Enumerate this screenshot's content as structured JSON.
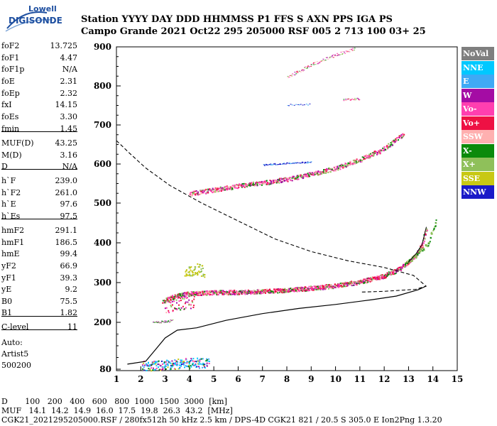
{
  "logo": {
    "line1": "Lowell",
    "line2": "DIGISONDE"
  },
  "header": {
    "row1": "Station           YYYY DAY    DDD HHMMSS P1  FFS S AXN PPS IGA PS",
    "row2": "Campo Grande  2021 Oct22 295 205000 RSF 005 2 713 100 03+ 25"
  },
  "params": [
    {
      "name": "foF2",
      "value": "13.725"
    },
    {
      "name": "foF1",
      "value": "4.47"
    },
    {
      "name": "foF1p",
      "value": "N/A"
    },
    {
      "name": "foE",
      "value": "2.31"
    },
    {
      "name": "foEp",
      "value": "2.32"
    },
    {
      "name": "fxI",
      "value": "14.15"
    },
    {
      "name": "foEs",
      "value": "3.30"
    },
    {
      "name": "fmin",
      "value": "1.45"
    },
    {
      "name": "MUF(D)",
      "value": "43.25"
    },
    {
      "name": "M(D)",
      "value": "3.16"
    },
    {
      "name": "D",
      "value": "N/A"
    },
    {
      "name": "h`F",
      "value": "239.0"
    },
    {
      "name": "h`F2",
      "value": "261.0"
    },
    {
      "name": "h`E",
      "value": "97.6"
    },
    {
      "name": "h`Es",
      "value": "97.5"
    },
    {
      "name": "hmF2",
      "value": "291.1"
    },
    {
      "name": "hmF1",
      "value": "186.5"
    },
    {
      "name": "hmE",
      "value": "99.4"
    },
    {
      "name": "yF2",
      "value": "66.9"
    },
    {
      "name": "yF1",
      "value": "39.3"
    },
    {
      "name": "yE",
      "value": "9.2"
    },
    {
      "name": "B0",
      "value": "75.5"
    },
    {
      "name": "B1",
      "value": "1.82"
    },
    {
      "name": "C-level",
      "value": "11"
    },
    {
      "name": "Auto:",
      "value": ""
    },
    {
      "name": "Artist5",
      "value": ""
    },
    {
      "name": "500200",
      "value": ""
    }
  ],
  "legend": [
    {
      "label": "NoVal",
      "color": "#7f7f7f"
    },
    {
      "label": "NNE",
      "color": "#00c8ff"
    },
    {
      "label": "E",
      "color": "#3fa9f5"
    },
    {
      "label": "W",
      "color": "#a40ca4"
    },
    {
      "label": "Vo-",
      "color": "#ff3fb0"
    },
    {
      "label": "Vo+",
      "color": "#ee1144"
    },
    {
      "label": "SSW",
      "color": "#ffb0b0"
    },
    {
      "label": "X-",
      "color": "#0b8a0b"
    },
    {
      "label": "X+",
      "color": "#8fc05a"
    },
    {
      "label": "SSE",
      "color": "#c8c814"
    },
    {
      "label": "NNW",
      "color": "#1a1ac8"
    }
  ],
  "footer": {
    "row1": "D       100   200   400   600   800  1000  1500  3000  [km]",
    "row2": "MUF   14.1  14.2  14.9  16.0  17.5  19.8  26.3  43.2  [MHz]",
    "row3": "CGK21_2021295205000.RSF / 280fx512h 50 kHz 2.5 km / DPS-4D CGK21 821 / 20.5 S 305.0 E Ion2Png 1.3.20"
  },
  "chart_data": {
    "type": "scatter",
    "xlim": [
      1,
      15
    ],
    "ylim": [
      80,
      900
    ],
    "x_ticks": [
      "1",
      "2",
      "3",
      "4",
      "5",
      "6",
      "7",
      "8",
      "9",
      "10",
      "11",
      "12",
      "13",
      "14",
      "15"
    ],
    "y_ticks": [
      "80",
      "200",
      "300",
      "400",
      "500",
      "600",
      "700",
      "800",
      "900"
    ],
    "y_tick_values": [
      80,
      200,
      300,
      400,
      500,
      600,
      700,
      800,
      900
    ],
    "grid": false,
    "legend_position": "right",
    "es_trace": [
      [
        2.05,
        92
      ],
      [
        2.3,
        88
      ],
      [
        2.6,
        90
      ],
      [
        3.0,
        92
      ],
      [
        3.4,
        94
      ],
      [
        3.8,
        96
      ],
      [
        4.3,
        97
      ],
      [
        4.8,
        98
      ]
    ],
    "f_trace_lower": [
      [
        2.9,
        252
      ],
      [
        3.2,
        262
      ],
      [
        3.6,
        270
      ],
      [
        4.0,
        273
      ],
      [
        5.0,
        276
      ],
      [
        6.0,
        277
      ],
      [
        7.0,
        279
      ],
      [
        8.0,
        282
      ],
      [
        9.0,
        287
      ],
      [
        10.0,
        293
      ],
      [
        11.0,
        303
      ],
      [
        12.0,
        318
      ],
      [
        12.6,
        335
      ],
      [
        13.0,
        352
      ],
      [
        13.3,
        372
      ],
      [
        13.55,
        395
      ],
      [
        13.73,
        440
      ]
    ],
    "f1_trace": [
      [
        2.5,
        200
      ],
      [
        2.9,
        202
      ],
      [
        3.3,
        205
      ]
    ],
    "es_high": [
      [
        3.8,
        322
      ],
      [
        4.0,
        330
      ],
      [
        4.3,
        335
      ],
      [
        4.6,
        328
      ]
    ],
    "f_trace_upper": [
      [
        4.0,
        525
      ],
      [
        5.0,
        535
      ],
      [
        6.0,
        545
      ],
      [
        7.0,
        553
      ],
      [
        8.0,
        562
      ],
      [
        9.0,
        575
      ],
      [
        10.0,
        590
      ],
      [
        11.0,
        612
      ],
      [
        12.0,
        640
      ],
      [
        12.8,
        680
      ]
    ],
    "f_trace_faint": [
      [
        7.0,
        598
      ],
      [
        8.0,
        603
      ],
      [
        9.0,
        605
      ]
    ],
    "f_trace_multi": [
      [
        8.0,
        822
      ],
      [
        9.0,
        855
      ],
      [
        10.0,
        880
      ],
      [
        10.8,
        897
      ]
    ],
    "f_trace_x": [
      [
        12.8,
        345
      ],
      [
        13.3,
        370
      ],
      [
        13.8,
        400
      ],
      [
        14.15,
        460
      ]
    ],
    "profile_curve": [
      [
        1.45,
        93
      ],
      [
        2.2,
        100
      ],
      [
        2.6,
        130
      ],
      [
        3.0,
        160
      ],
      [
        3.5,
        180
      ],
      [
        4.3,
        186
      ],
      [
        5.5,
        205
      ],
      [
        7.0,
        222
      ],
      [
        8.5,
        235
      ],
      [
        10.0,
        245
      ],
      [
        11.5,
        257
      ],
      [
        12.5,
        266
      ],
      [
        13.4,
        282
      ],
      [
        13.72,
        291
      ]
    ],
    "muf_curve": [
      [
        1.0,
        660
      ],
      [
        1.5,
        630
      ],
      [
        2.2,
        590
      ],
      [
        3.2,
        545
      ],
      [
        4.5,
        500
      ],
      [
        6.0,
        455
      ],
      [
        7.5,
        410
      ],
      [
        9.0,
        378
      ],
      [
        10.5,
        355
      ],
      [
        12.0,
        338
      ],
      [
        13.2,
        318
      ],
      [
        13.72,
        291
      ],
      [
        13.3,
        283
      ],
      [
        12.0,
        278
      ],
      [
        11.0,
        276
      ]
    ]
  }
}
